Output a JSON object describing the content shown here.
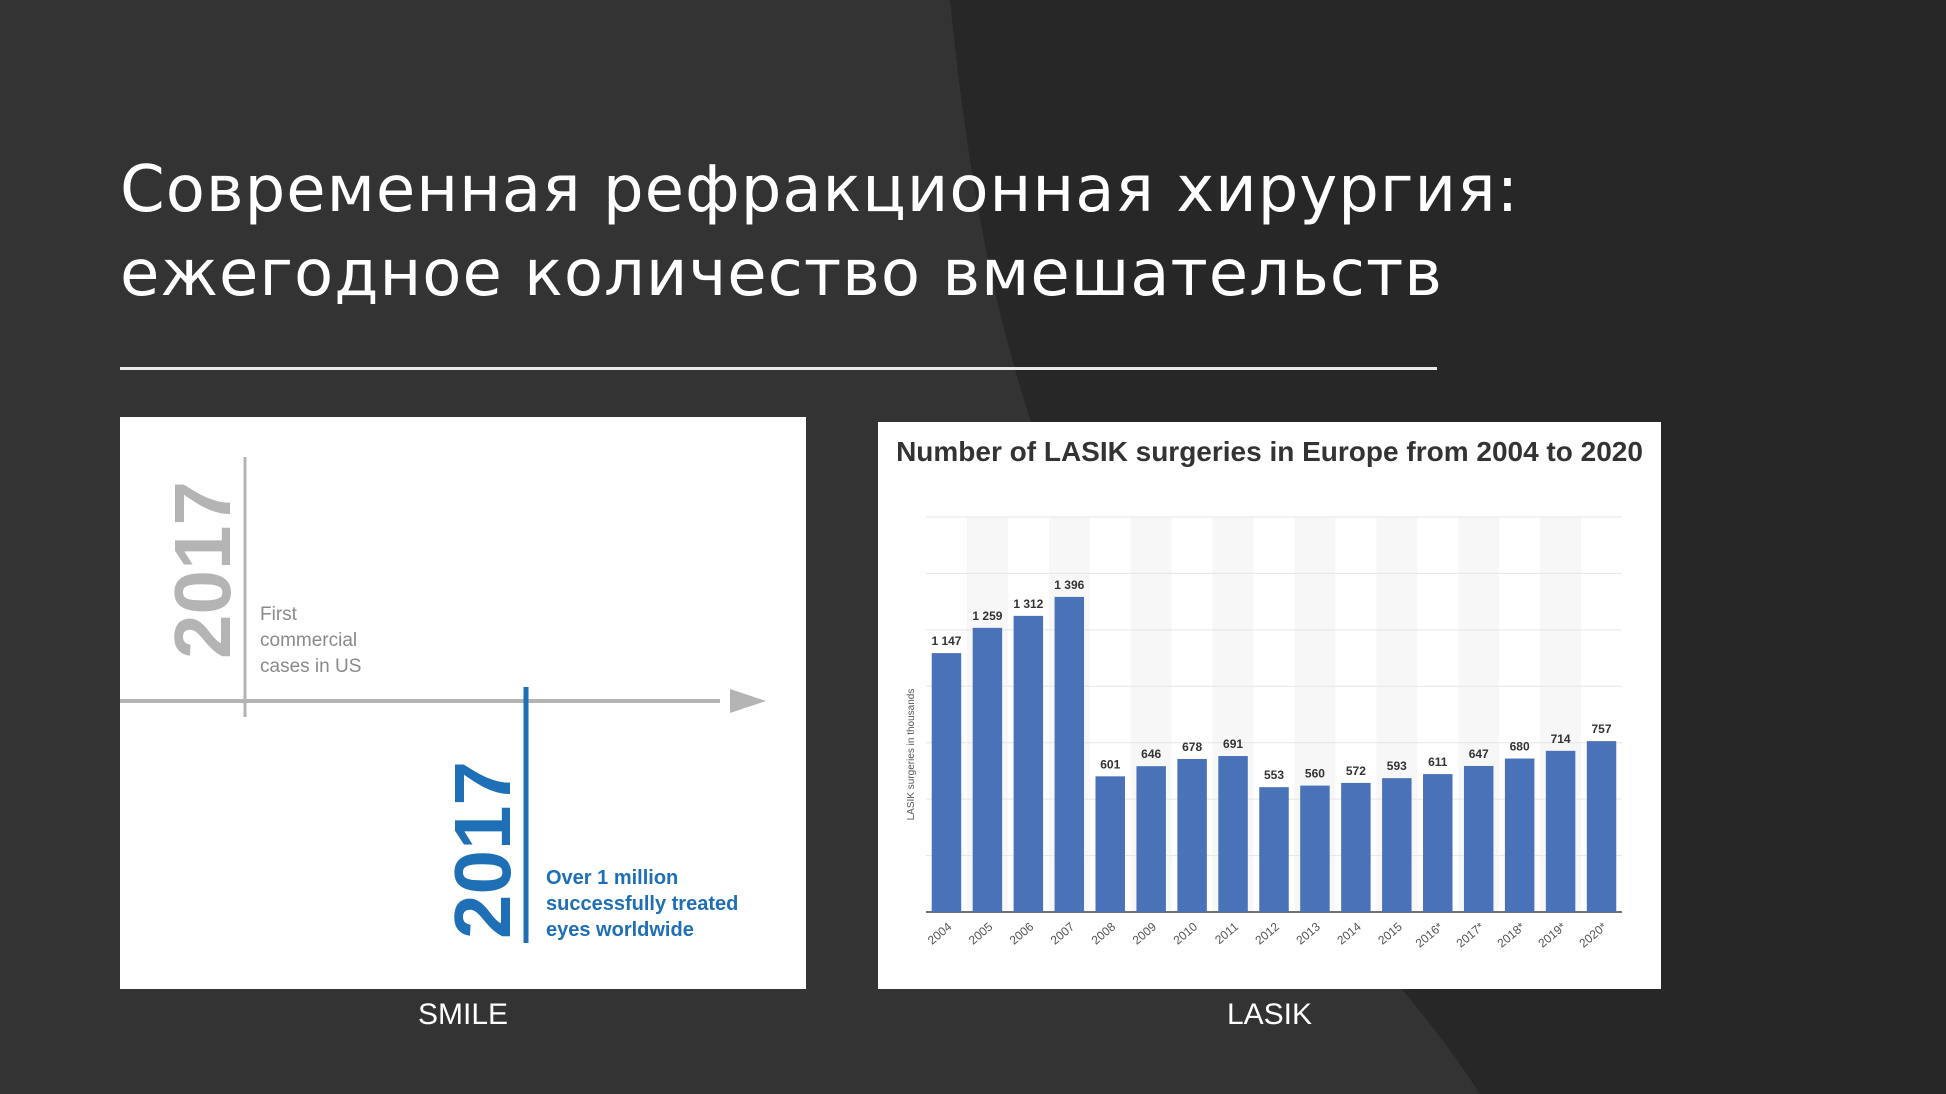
{
  "slide": {
    "title_line1": "Современная рефракционная хирургия:",
    "title_line2": "ежегодное количество вмешательств"
  },
  "smile_panel": {
    "caption": "SMILE",
    "year_top": "2017",
    "text_top": [
      "First",
      "commercial",
      "cases in US"
    ],
    "year_bottom": "2017",
    "text_bottom": [
      "Over 1 million",
      "successfully treated",
      "eyes worldwide"
    ],
    "color_gray": "#b4b4b4",
    "color_blue": "#1e6fb5"
  },
  "lasik_panel": {
    "caption": "LASIK"
  },
  "chart_data": {
    "type": "bar",
    "title": "Number of LASIK surgeries in Europe from 2004 to 2020",
    "xlabel": "",
    "ylabel": "LASIK surgeries in thousands",
    "categories": [
      "2004",
      "2005",
      "2006",
      "2007",
      "2008",
      "2009",
      "2010",
      "2011",
      "2012",
      "2013",
      "2014",
      "2015",
      "2016*",
      "2017*",
      "2018*",
      "2019*",
      "2020*"
    ],
    "values": [
      1147,
      1259,
      1312,
      1396,
      601,
      646,
      678,
      691,
      553,
      560,
      572,
      593,
      611,
      647,
      680,
      714,
      757
    ],
    "value_labels": [
      "1 147",
      "1 259",
      "1 312",
      "1 396",
      "601",
      "646",
      "678",
      "691",
      "553",
      "560",
      "572",
      "593",
      "611",
      "647",
      "680",
      "714",
      "757"
    ],
    "ylim": [
      0,
      1750
    ],
    "grid": true,
    "bar_color": "#4a72b8"
  }
}
